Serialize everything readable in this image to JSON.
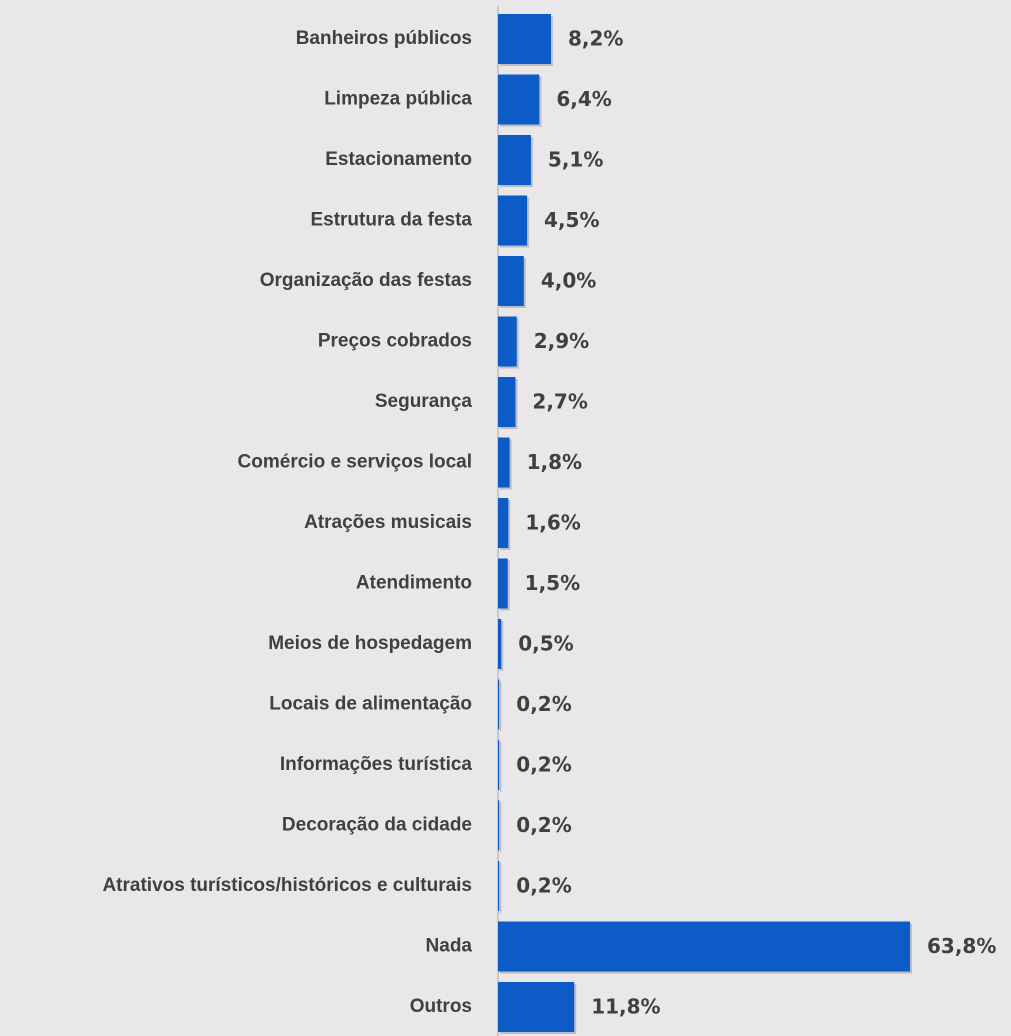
{
  "colors": {
    "background": "#e9e7ea",
    "bar": "#0d5bc6",
    "bar_shadow": "#9a9aa2",
    "axis": "#c8c8cc",
    "text": "#404040"
  },
  "chart_data": {
    "type": "bar",
    "orientation": "horizontal",
    "title": "",
    "xlabel": "",
    "ylabel": "",
    "grid": false,
    "legend": "none",
    "xlim": [
      0,
      63.8
    ],
    "categories": [
      "Banheiros públicos",
      "Limpeza pública",
      "Estacionamento",
      "Estrutura da festa",
      "Organização das festas",
      "Preços cobrados",
      "Segurança",
      "Comércio e serviços local",
      "Atrações musicais",
      "Atendimento",
      "Meios de hospedagem",
      "Locais de alimentação",
      "Informações turística",
      "Decoração da cidade",
      "Atrativos turísticos/históricos e culturais",
      "Nada",
      "Outros"
    ],
    "values": [
      8.2,
      6.4,
      5.1,
      4.5,
      4.0,
      2.9,
      2.7,
      1.8,
      1.6,
      1.5,
      0.5,
      0.2,
      0.2,
      0.2,
      0.2,
      63.8,
      11.8
    ],
    "data_labels": [
      "8,2%",
      "6,4%",
      "5,1%",
      "4,5%",
      "4,0%",
      "2,9%",
      "2,7%",
      "1,8%",
      "1,6%",
      "1,5%",
      "0,5%",
      "0,2%",
      "0,2%",
      "0,2%",
      "0,2%",
      "63,8%",
      "11,8%"
    ]
  }
}
